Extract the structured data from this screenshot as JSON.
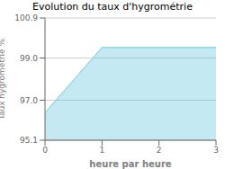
{
  "chart_data": {
    "type": "area",
    "title": "Evolution du taux d'hygrométrie",
    "xlabel": "heure par heure",
    "ylabel": "Taux hygrométrie %",
    "x": [
      0,
      1,
      3
    ],
    "values": [
      96.4,
      99.5,
      99.5
    ],
    "color": "#6cc8e0",
    "xlim": [
      0,
      3
    ],
    "ylim": [
      95.1,
      100.9
    ],
    "xticks": [
      0,
      1,
      2,
      3
    ],
    "yticks": [
      95.1,
      {
        "value": 97.0,
        "label": "97.0"
      },
      {
        "value": 99.0,
        "label": "99.0"
      },
      100.9
    ],
    "grid": true
  }
}
